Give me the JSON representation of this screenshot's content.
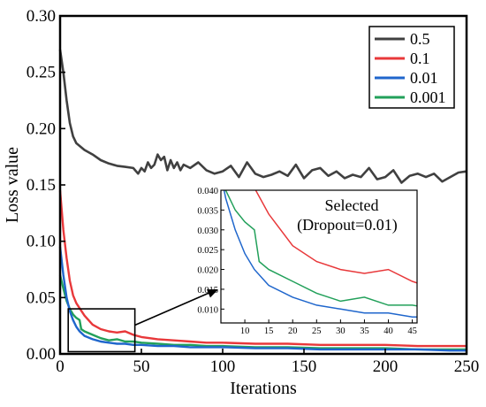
{
  "chart_data": {
    "type": "line",
    "xlabel": "Iterations",
    "ylabel": "Loss value",
    "xlim": [
      0,
      250
    ],
    "ylim": [
      0,
      0.3
    ],
    "x_ticks": [
      "0",
      "50",
      "100",
      "150",
      "200",
      "250"
    ],
    "y_ticks": [
      "0.00",
      "0.05",
      "0.10",
      "0.15",
      "0.20",
      "0.25",
      "0.30"
    ],
    "grid": false,
    "legend_position": "top-right",
    "series": [
      {
        "name": "0.5",
        "color": "#404040",
        "x": [
          0,
          2,
          4,
          6,
          8,
          10,
          15,
          20,
          25,
          30,
          35,
          40,
          45,
          48,
          50,
          52,
          54,
          56,
          58,
          60,
          62,
          64,
          66,
          68,
          70,
          72,
          74,
          76,
          80,
          85,
          90,
          95,
          100,
          105,
          110,
          115,
          120,
          125,
          130,
          135,
          140,
          145,
          150,
          155,
          160,
          165,
          170,
          175,
          180,
          185,
          190,
          195,
          200,
          205,
          210,
          215,
          220,
          225,
          230,
          235,
          240,
          245,
          250
        ],
        "values": [
          0.27,
          0.25,
          0.225,
          0.205,
          0.193,
          0.187,
          0.181,
          0.177,
          0.172,
          0.169,
          0.167,
          0.166,
          0.165,
          0.16,
          0.165,
          0.162,
          0.17,
          0.165,
          0.168,
          0.177,
          0.172,
          0.175,
          0.163,
          0.172,
          0.165,
          0.17,
          0.163,
          0.168,
          0.165,
          0.17,
          0.163,
          0.16,
          0.162,
          0.167,
          0.157,
          0.17,
          0.16,
          0.157,
          0.159,
          0.162,
          0.158,
          0.168,
          0.156,
          0.163,
          0.165,
          0.158,
          0.162,
          0.156,
          0.159,
          0.157,
          0.165,
          0.155,
          0.157,
          0.163,
          0.152,
          0.158,
          0.16,
          0.157,
          0.16,
          0.153,
          0.157,
          0.161,
          0.162
        ]
      },
      {
        "name": "0.1",
        "color": "#e8383a",
        "x": [
          0,
          2,
          4,
          6,
          8,
          10,
          15,
          20,
          25,
          30,
          35,
          40,
          45,
          50,
          60,
          70,
          80,
          90,
          100,
          120,
          140,
          160,
          180,
          200,
          220,
          240,
          250
        ],
        "values": [
          0.145,
          0.11,
          0.085,
          0.065,
          0.052,
          0.045,
          0.034,
          0.026,
          0.022,
          0.02,
          0.019,
          0.02,
          0.017,
          0.015,
          0.013,
          0.012,
          0.011,
          0.01,
          0.01,
          0.009,
          0.009,
          0.008,
          0.008,
          0.008,
          0.007,
          0.007,
          0.007
        ]
      },
      {
        "name": "0.01",
        "color": "#1f66cc",
        "x": [
          0,
          2,
          4,
          6,
          8,
          10,
          12,
          15,
          20,
          25,
          30,
          35,
          40,
          45,
          50,
          60,
          70,
          80,
          100,
          120,
          140,
          160,
          180,
          200,
          220,
          240,
          250
        ],
        "values": [
          0.095,
          0.07,
          0.05,
          0.038,
          0.03,
          0.024,
          0.02,
          0.016,
          0.013,
          0.011,
          0.01,
          0.009,
          0.009,
          0.008,
          0.008,
          0.007,
          0.007,
          0.006,
          0.006,
          0.005,
          0.005,
          0.004,
          0.004,
          0.004,
          0.004,
          0.003,
          0.003
        ]
      },
      {
        "name": "0.001",
        "color": "#22a05a",
        "x": [
          0,
          2,
          4,
          6,
          8,
          10,
          12,
          13,
          15,
          20,
          25,
          30,
          35,
          40,
          45,
          50,
          60,
          70,
          80,
          90,
          100,
          120,
          140,
          160,
          180,
          200,
          220,
          240,
          250
        ],
        "values": [
          0.07,
          0.058,
          0.047,
          0.04,
          0.035,
          0.032,
          0.03,
          0.022,
          0.02,
          0.017,
          0.014,
          0.012,
          0.013,
          0.011,
          0.011,
          0.01,
          0.009,
          0.008,
          0.008,
          0.007,
          0.007,
          0.006,
          0.006,
          0.005,
          0.005,
          0.005,
          0.004,
          0.004,
          0.004
        ]
      }
    ],
    "inset": {
      "xlim": [
        5,
        46
      ],
      "ylim": [
        0.0065,
        0.04
      ],
      "x_ticks": [
        "10",
        "15",
        "20",
        "25",
        "30",
        "35",
        "40",
        "45"
      ],
      "y_ticks": [
        "0.010",
        "0.015",
        "0.020",
        "0.025",
        "0.030",
        "0.035",
        "0.040"
      ],
      "annotation_line1": "Selected",
      "annotation_line2": "(Dropout=0.01)"
    }
  }
}
